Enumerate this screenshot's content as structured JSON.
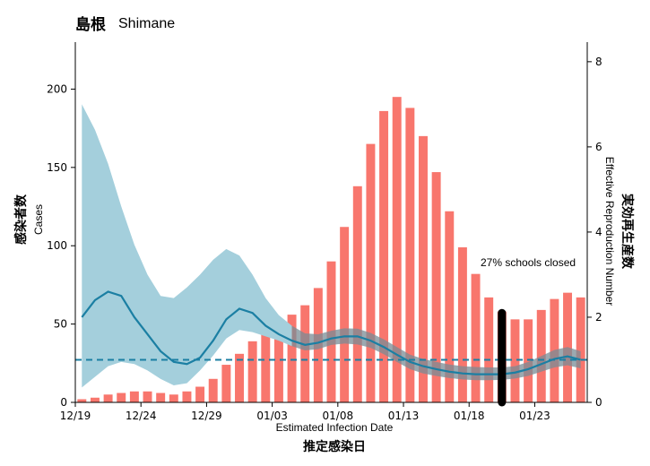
{
  "chart_data": {
    "type": "bar",
    "title": "島根",
    "subtitle": "Shimane",
    "xlabel": "Estimated Infection Date",
    "xlabel_jp": "推定感染日",
    "ylabel": "Cases",
    "ylabel_jp": "感染者数",
    "y2label": "Effective Reproduction Number",
    "y2label_jp": "実効再生産数",
    "ylim": [
      0,
      230
    ],
    "y2lim": [
      0,
      8.46
    ],
    "yticks": [
      0,
      50,
      100,
      150,
      200
    ],
    "y2ticks": [
      0,
      2,
      4,
      6,
      8
    ],
    "xticks": [
      "12/19",
      "12/24",
      "12/29",
      "01/03",
      "01/08",
      "01/13",
      "01/18",
      "01/23"
    ],
    "annotation": "27% schools closed",
    "annotation_date_index": 32,
    "colors": {
      "bars": "#f8766d",
      "rt_line": "#1b7fa3",
      "rt_band_early": "#a4cfdc",
      "rt_band_late": "#7a8c96",
      "threshold": "#1b7fa3",
      "marker": "#000000"
    },
    "cases": [
      2,
      3,
      5,
      6,
      7,
      7,
      6,
      5,
      7,
      10,
      15,
      24,
      31,
      39,
      45,
      50,
      56,
      62,
      73,
      90,
      112,
      138,
      165,
      186,
      195,
      188,
      170,
      147,
      122,
      99,
      82,
      67,
      58,
      53,
      53,
      59,
      66,
      70,
      67
    ],
    "rt": {
      "name": "Rt",
      "values": [
        2.0,
        2.4,
        2.6,
        2.5,
        2.0,
        1.6,
        1.2,
        0.95,
        0.9,
        1.05,
        1.45,
        1.95,
        2.2,
        2.1,
        1.8,
        1.6,
        1.45,
        1.35,
        1.4,
        1.5,
        1.55,
        1.55,
        1.45,
        1.3,
        1.12,
        0.95,
        0.85,
        0.78,
        0.72,
        0.68,
        0.66,
        0.66,
        0.66,
        0.7,
        0.78,
        0.9,
        1.02,
        1.08,
        1.0
      ],
      "lower": [
        0.35,
        0.6,
        0.85,
        0.95,
        0.9,
        0.75,
        0.55,
        0.4,
        0.45,
        0.75,
        1.1,
        1.5,
        1.7,
        1.65,
        1.55,
        1.45,
        1.32,
        1.22,
        1.25,
        1.35,
        1.38,
        1.36,
        1.28,
        1.13,
        0.95,
        0.78,
        0.68,
        0.62,
        0.57,
        0.54,
        0.52,
        0.52,
        0.53,
        0.56,
        0.62,
        0.72,
        0.82,
        0.87,
        0.8
      ],
      "upper": [
        7.0,
        6.4,
        5.6,
        4.6,
        3.7,
        3.0,
        2.5,
        2.45,
        2.7,
        3.0,
        3.35,
        3.6,
        3.45,
        3.0,
        2.45,
        2.05,
        1.8,
        1.62,
        1.6,
        1.68,
        1.74,
        1.73,
        1.63,
        1.48,
        1.3,
        1.12,
        1.02,
        0.95,
        0.89,
        0.85,
        0.83,
        0.82,
        0.82,
        0.85,
        0.95,
        1.09,
        1.23,
        1.3,
        1.2
      ]
    },
    "threshold": 1.0,
    "grid": false
  }
}
